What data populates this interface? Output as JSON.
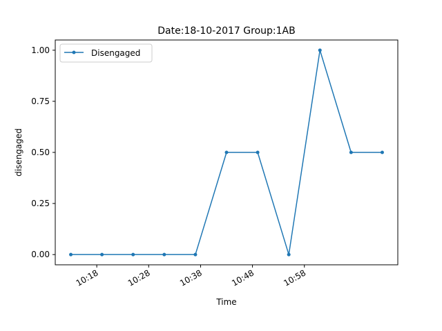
{
  "chart_data": {
    "type": "line",
    "title": "Date:18-10-2017  Group:1AB",
    "xlabel": "Time",
    "ylabel": "disengaged",
    "x": [
      "10:13",
      "10:19",
      "10:25",
      "10:31",
      "10:37",
      "10:43",
      "10:49",
      "10:55",
      "11:01",
      "11:07",
      "11:13"
    ],
    "x_tick_labels": [
      "10:18",
      "10:28",
      "10:38",
      "10:48",
      "10:58"
    ],
    "y_tick_labels": [
      "0.00",
      "0.25",
      "0.50",
      "0.75",
      "1.00"
    ],
    "xlim": [
      "10:10",
      "11:16"
    ],
    "ylim": [
      -0.05,
      1.05
    ],
    "series": [
      {
        "name": "Disengaged",
        "values": [
          0,
          0,
          0,
          0,
          0,
          0.5,
          0.5,
          0,
          1,
          0.5,
          0.5
        ],
        "color": "#1f77b4"
      }
    ],
    "grid": false,
    "legend": "top-left"
  }
}
